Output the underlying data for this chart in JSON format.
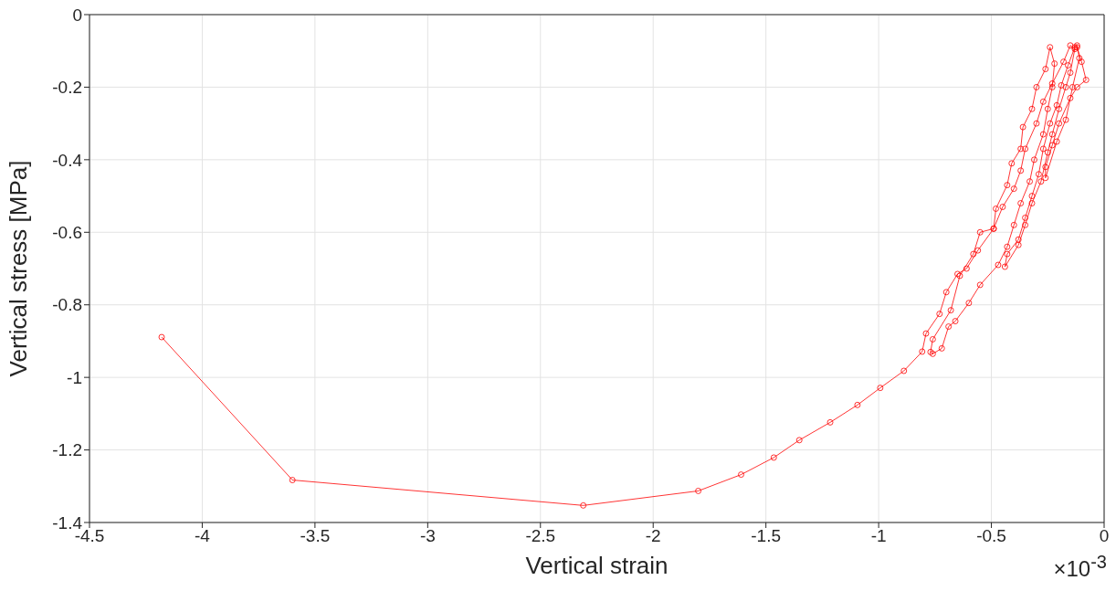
{
  "chart_data": {
    "type": "line",
    "xlabel": "Vertical strain",
    "ylabel": "Vertical stress [MPa]",
    "annotations": [
      "×10$^{-3}$"
    ],
    "x": [
      -4.18,
      -3.6,
      -2.31,
      -1.8,
      -1.61,
      -1.465,
      -1.352,
      -1.215,
      -1.094,
      -0.993,
      -0.888,
      -0.807,
      -0.79,
      -0.73,
      -0.7,
      -0.65,
      -0.61,
      -0.56,
      -0.49,
      -0.48,
      -0.43,
      -0.41,
      -0.37,
      -0.36,
      -0.32,
      -0.3,
      -0.26,
      -0.24,
      -0.22,
      -0.23,
      -0.25,
      -0.27,
      -0.31,
      -0.33,
      -0.37,
      -0.4,
      -0.43,
      -0.47,
      -0.55,
      -0.6,
      -0.66,
      -0.69,
      -0.72,
      -0.76,
      -0.77,
      -0.76,
      -0.68,
      -0.64,
      -0.58,
      -0.55,
      -0.49,
      -0.45,
      -0.4,
      -0.37,
      -0.35,
      -0.3,
      -0.27,
      -0.23,
      -0.18,
      -0.15,
      -0.13,
      -0.15,
      -0.17,
      -0.2,
      -0.23,
      -0.25,
      -0.28,
      -0.32,
      -0.35,
      -0.38,
      -0.44,
      -0.43,
      -0.38,
      -0.35,
      -0.32,
      -0.29,
      -0.27,
      -0.24,
      -0.21,
      -0.19,
      -0.16,
      -0.13,
      -0.12,
      -0.11,
      -0.14,
      -0.17,
      -0.21,
      -0.26,
      -0.26,
      -0.23,
      -0.2,
      -0.15,
      -0.12,
      -0.08,
      -0.1,
      -0.12
    ],
    "series": [
      {
        "color": "#ff0000",
        "values": [
          -0.889,
          -1.283,
          -1.353,
          -1.313,
          -1.268,
          -1.221,
          -1.173,
          -1.124,
          -1.076,
          -1.029,
          -0.982,
          -0.929,
          -0.879,
          -0.825,
          -0.765,
          -0.715,
          -0.7,
          -0.65,
          -0.59,
          -0.535,
          -0.47,
          -0.41,
          -0.37,
          -0.31,
          -0.26,
          -0.2,
          -0.15,
          -0.09,
          -0.135,
          -0.2,
          -0.26,
          -0.33,
          -0.4,
          -0.46,
          -0.52,
          -0.58,
          -0.64,
          -0.69,
          -0.745,
          -0.795,
          -0.845,
          -0.86,
          -0.92,
          -0.935,
          -0.93,
          -0.895,
          -0.815,
          -0.72,
          -0.66,
          -0.6,
          -0.59,
          -0.53,
          -0.48,
          -0.43,
          -0.37,
          -0.3,
          -0.24,
          -0.19,
          -0.13,
          -0.085,
          -0.095,
          -0.16,
          -0.2,
          -0.26,
          -0.33,
          -0.38,
          -0.46,
          -0.52,
          -0.58,
          -0.635,
          -0.695,
          -0.66,
          -0.62,
          -0.56,
          -0.5,
          -0.44,
          -0.37,
          -0.3,
          -0.25,
          -0.195,
          -0.14,
          -0.09,
          -0.085,
          -0.12,
          -0.2,
          -0.29,
          -0.35,
          -0.45,
          -0.42,
          -0.36,
          -0.3,
          -0.23,
          -0.2,
          -0.18,
          -0.13,
          -0.09
        ]
      }
    ],
    "xlim": [
      -4.5,
      0
    ],
    "xticks": [
      -4.5,
      -4,
      -3.5,
      -3,
      -2.5,
      -2,
      -1.5,
      -1,
      -0.5,
      0
    ],
    "ylim": [
      -1.4,
      0
    ],
    "yticks": [
      -1.4,
      -1.2,
      -1,
      -0.8,
      -0.6,
      -0.4,
      -0.2,
      0
    ],
    "grid": true,
    "marker": "circle",
    "line_style": "solid",
    "legend": false
  }
}
